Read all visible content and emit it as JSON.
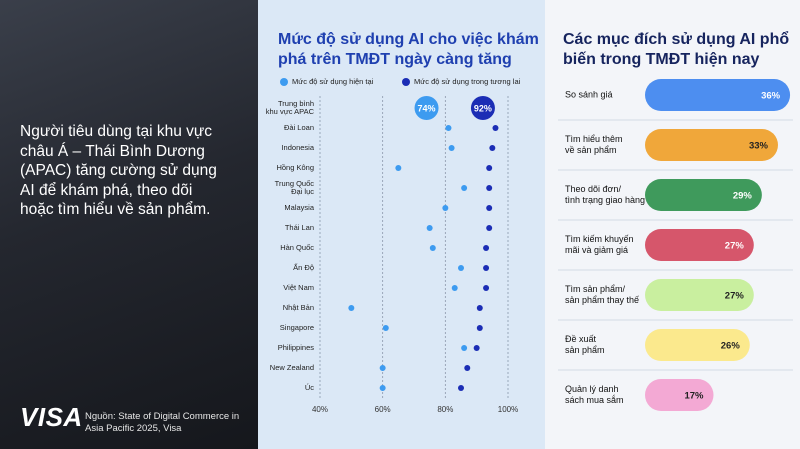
{
  "left": {
    "headline": [
      "Người tiêu dùng tại khu vực",
      "châu Á – Thái Bình Dương",
      "(APAC) tăng cường sử dụng",
      "AI để khám phá, theo dõi",
      "hoặc tìm hiểu về sản phẩm."
    ],
    "logo": "VISA",
    "source": "Nguồn: State of Digital Commerce in Asia Pacific 2025, Visa"
  },
  "chart_data": [
    {
      "type": "dumbbell",
      "title": [
        "Mức độ sử dụng AI cho việc khám",
        "phá trên TMĐT ngày càng tăng"
      ],
      "categories": [
        [
          "Trung bình",
          "khu vực APAC"
        ],
        [
          "Đài Loan"
        ],
        [
          "Indonesia"
        ],
        [
          "Hồng Kông"
        ],
        [
          "Trung Quốc",
          "Đại lục"
        ],
        [
          "Malaysia"
        ],
        [
          "Thái Lan"
        ],
        [
          "Hàn Quốc"
        ],
        [
          "Ấn Độ"
        ],
        [
          "Việt Nam"
        ],
        [
          "Nhật Bản"
        ],
        [
          "Singapore"
        ],
        [
          "Philippines"
        ],
        [
          "New Zealand"
        ],
        [
          "Úc"
        ]
      ],
      "series": [
        {
          "name": "Mức độ sử dụng hiện tại",
          "color": "#3d9bf0",
          "values": [
            74,
            81,
            82,
            65,
            86,
            80,
            75,
            76,
            85,
            83,
            50,
            61,
            86,
            60,
            60
          ],
          "value_labels": [
            "74%",
            null,
            null,
            null,
            null,
            null,
            null,
            null,
            null,
            null,
            null,
            null,
            null,
            null,
            null
          ]
        },
        {
          "name": "Mức độ sử dụng trong tương lai",
          "color": "#1b2db5",
          "values": [
            92,
            96,
            95,
            94,
            94,
            94,
            94,
            93,
            93,
            93,
            91,
            91,
            90,
            87,
            85
          ],
          "value_labels": [
            "92%",
            null,
            null,
            null,
            null,
            null,
            null,
            null,
            null,
            null,
            null,
            null,
            null,
            null,
            null
          ]
        }
      ],
      "xlim": [
        40,
        100
      ],
      "xticks": [
        {
          "value": 40,
          "label": "40%"
        },
        {
          "value": 60,
          "label": "60%"
        },
        {
          "value": 80,
          "label": "80%"
        },
        {
          "value": 100,
          "label": "100%"
        }
      ],
      "grid": true
    },
    {
      "type": "bar",
      "title": [
        "Các mục đích sử dụng AI phổ",
        "biến trong TMĐT hiện nay"
      ],
      "categories": [
        [
          "So sánh giá"
        ],
        [
          "Tìm hiểu thêm",
          "về sản phẩm"
        ],
        [
          "Theo dõi đơn/",
          "tình trạng giao hàng"
        ],
        [
          "Tìm kiếm khuyến",
          "mãi và giảm giá"
        ],
        [
          "Tìm sản phẩm/",
          "sản phẩm thay thế"
        ],
        [
          "Đề xuất",
          "sản phẩm"
        ],
        [
          "Quản lý danh",
          "sách mua sắm"
        ]
      ],
      "values": [
        36,
        33,
        29,
        27,
        27,
        26,
        17
      ],
      "value_labels": [
        "36%",
        "33%",
        "29%",
        "27%",
        "27%",
        "26%",
        "17%"
      ],
      "colors": [
        "#4d8ef0",
        "#f0a73a",
        "#3f9a5c",
        "#d6566b",
        "#c9ef9f",
        "#fbe98d",
        "#f3a9d4"
      ]
    }
  ]
}
